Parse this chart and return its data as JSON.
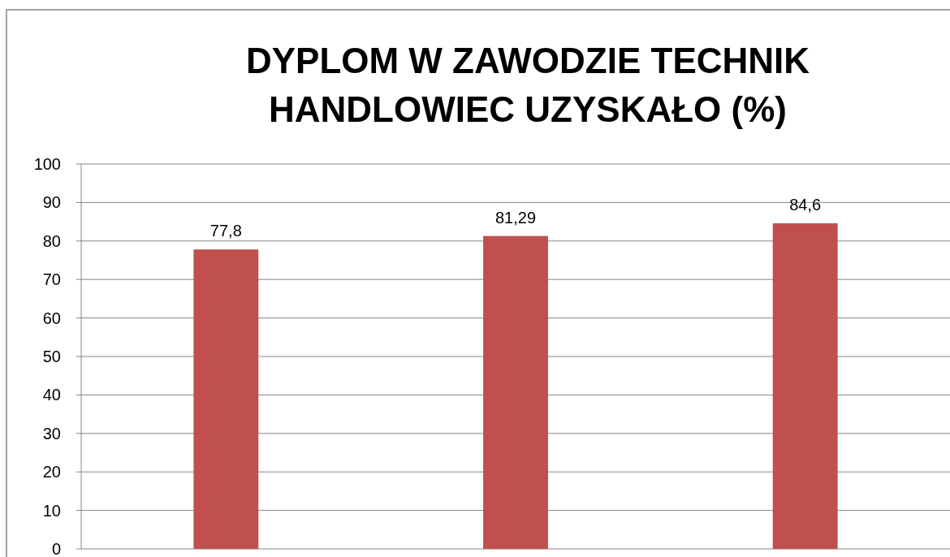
{
  "chart_data": {
    "type": "bar",
    "title": "DYPLOM W ZAWODZIE TECHNIK\nHANDLOWIEC UZYSKAŁO (%)",
    "categories": [
      null,
      null,
      null
    ],
    "values": [
      77.8,
      81.29,
      84.6
    ],
    "value_labels": [
      "77,8",
      "81,29",
      "84,6"
    ],
    "color": "#c0504d",
    "ylim": [
      0,
      100
    ],
    "yticks": [
      0,
      10,
      20,
      30,
      40,
      50,
      60,
      70,
      80,
      90,
      100
    ],
    "grid": "y",
    "tick_labels": "y"
  }
}
